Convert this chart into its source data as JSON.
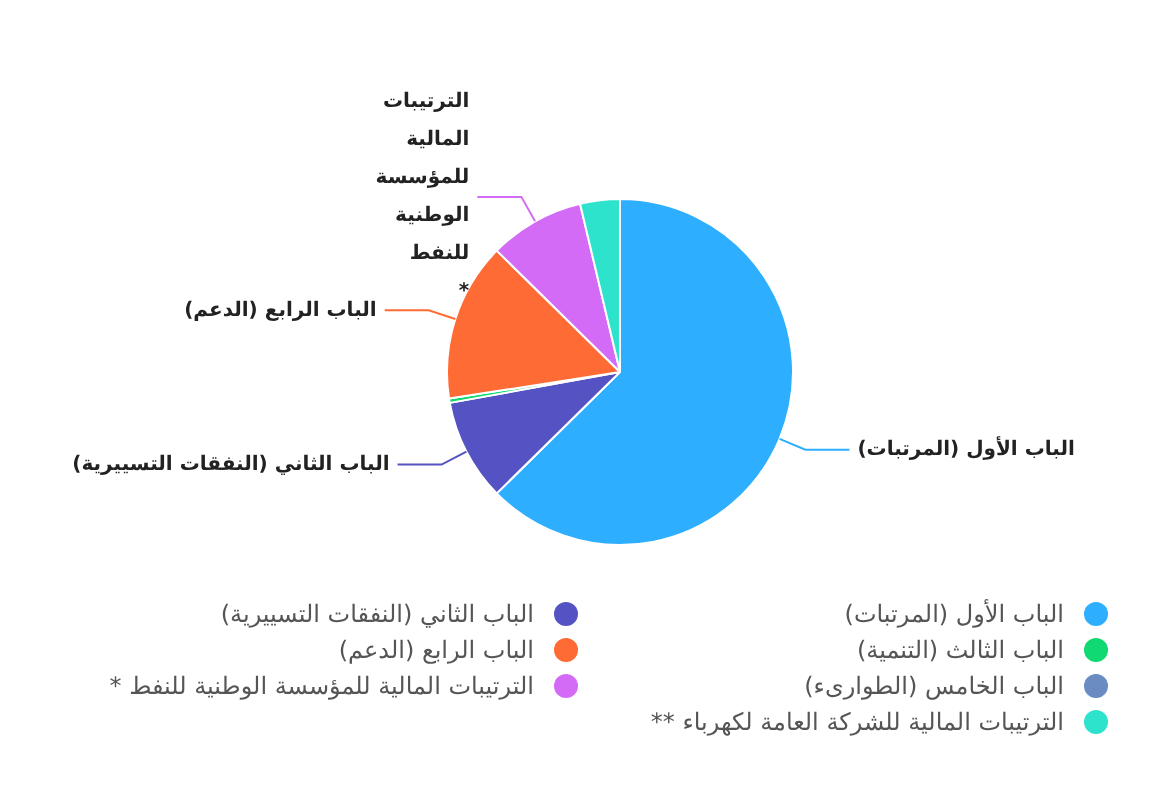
{
  "chart_data": {
    "type": "pie",
    "categories": [
      "الباب الأول (المرتبات)",
      "الباب الثاني (النفقات التسييرية)",
      "الباب الثالث (التنمية)",
      "الباب الرابع (الدعم)",
      "الباب الخامس (الطوارىء)",
      "الترتيبات المالية للمؤسسة الوطنية للنفط *",
      "الترتيبات المالية للشركة العامة لكهرباء **"
    ],
    "values": [
      62.5,
      9.5,
      0.4,
      14.8,
      null,
      8.9,
      3.7
    ],
    "colors": [
      "#2eaefe",
      "#5552c4",
      "#10d872",
      "#ff6b35",
      "#6a8cc3",
      "#d36bf7",
      "#2ee3cc"
    ],
    "legend": "bottom"
  }
}
